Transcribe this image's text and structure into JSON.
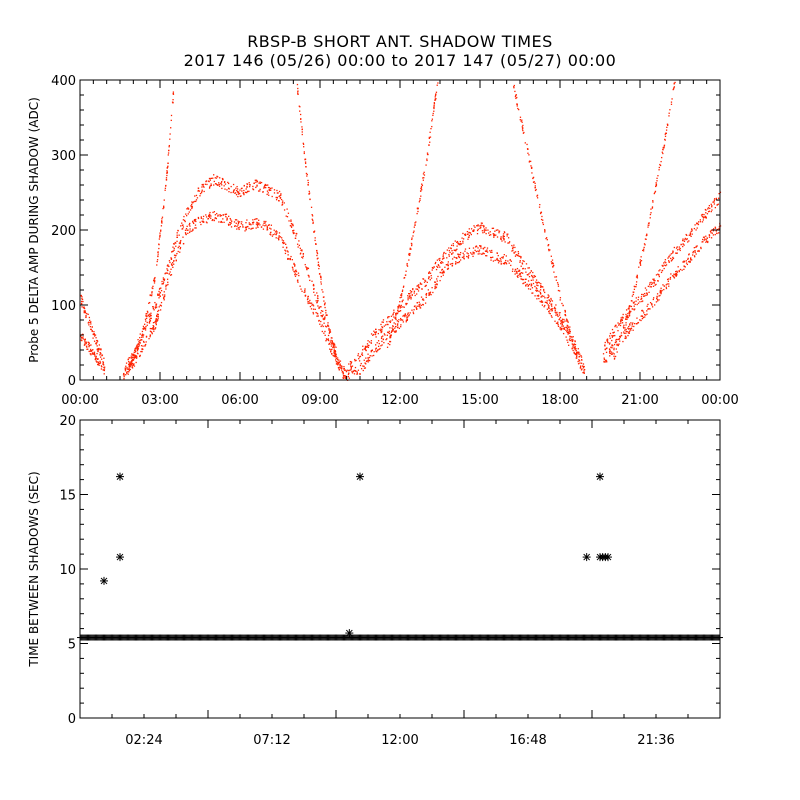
{
  "title_line1": "RBSP-B SHORT ANT. SHADOW TIMES",
  "title_line2": "2017 146 (05/26) 00:00 to 2017 147 (05/27) 00:00",
  "colors": {
    "series": "#ff2200",
    "marker": "#000000",
    "axis": "#000000"
  },
  "chart_data": [
    {
      "type": "scatter",
      "ylabel": "Probe 5 DELTA AMP DURING SHADOW (ADC)",
      "xlim_hours": [
        0,
        24
      ],
      "ylim": [
        0,
        400
      ],
      "x_ticks": [
        "00:00",
        "03:00",
        "06:00",
        "09:00",
        "12:00",
        "15:00",
        "18:00",
        "21:00",
        "00:00"
      ],
      "y_ticks": [
        "0",
        "100",
        "200",
        "300",
        "400"
      ],
      "grid": false,
      "series": [
        {
          "band": "upper",
          "x_hours": [
            0.0,
            0.3,
            0.6,
            0.9,
            1.6,
            2.0,
            2.4,
            2.8,
            3.1,
            3.5,
            4.0,
            4.5,
            5.0,
            5.5,
            6.0,
            6.5,
            7.0,
            7.5,
            8.0,
            8.5,
            9.0,
            9.5,
            9.9,
            10.5,
            11.0,
            11.5,
            12.0,
            12.5,
            13.0,
            13.5,
            14.0,
            14.5,
            15.0,
            15.5,
            16.0,
            16.5,
            17.0,
            17.5,
            18.0,
            18.5,
            18.9,
            19.6,
            20.0,
            20.5,
            21.0,
            21.5,
            22.0,
            22.5,
            23.0,
            23.5,
            24.0
          ],
          "y": [
            110,
            80,
            50,
            25,
            10,
            35,
            70,
            100,
            130,
            180,
            225,
            255,
            268,
            260,
            250,
            262,
            255,
            245,
            200,
            150,
            95,
            45,
            10,
            35,
            60,
            80,
            100,
            118,
            135,
            160,
            178,
            195,
            205,
            198,
            190,
            160,
            135,
            110,
            85,
            50,
            15,
            40,
            65,
            90,
            110,
            130,
            160,
            180,
            200,
            225,
            245
          ]
        },
        {
          "band": "lower",
          "x_hours": [
            0.0,
            0.3,
            0.6,
            0.9,
            1.6,
            2.0,
            2.4,
            2.8,
            3.1,
            3.5,
            4.0,
            4.5,
            5.0,
            5.5,
            6.0,
            6.5,
            7.0,
            7.5,
            8.0,
            8.5,
            9.0,
            9.5,
            9.9,
            10.5,
            11.0,
            11.5,
            12.0,
            12.5,
            13.0,
            13.5,
            14.0,
            14.5,
            15.0,
            15.5,
            16.0,
            16.5,
            17.0,
            17.5,
            18.0,
            18.5,
            18.9,
            19.6,
            20.0,
            20.5,
            21.0,
            21.5,
            22.0,
            22.5,
            23.0,
            23.5,
            24.0
          ],
          "y": [
            60,
            45,
            30,
            15,
            5,
            25,
            50,
            75,
            110,
            160,
            200,
            215,
            220,
            215,
            205,
            210,
            205,
            190,
            150,
            110,
            75,
            35,
            5,
            15,
            40,
            60,
            78,
            95,
            112,
            140,
            160,
            170,
            175,
            165,
            160,
            140,
            120,
            100,
            75,
            40,
            10,
            25,
            45,
            65,
            85,
            105,
            130,
            150,
            170,
            190,
            205
          ]
        },
        {
          "band": "rising-arc",
          "x_hours": [
            1.8,
            2.3,
            2.8,
            3.2,
            3.5
          ],
          "y": [
            15,
            60,
            140,
            260,
            390
          ]
        },
        {
          "band": "descending-arc",
          "x_hours": [
            8.1,
            8.5,
            8.9,
            9.3,
            9.7
          ],
          "y": [
            400,
            270,
            160,
            70,
            15
          ]
        },
        {
          "band": "rising-arc",
          "x_hours": [
            11.5,
            12.0,
            12.5,
            13.0,
            13.4
          ],
          "y": [
            40,
            110,
            200,
            300,
            400
          ]
        },
        {
          "band": "descending-arc",
          "x_hours": [
            16.2,
            16.8,
            17.4,
            18.0,
            18.6
          ],
          "y": [
            400,
            300,
            200,
            110,
            35
          ]
        },
        {
          "band": "rising-arc",
          "x_hours": [
            20.0,
            20.6,
            21.2,
            21.8,
            22.3
          ],
          "y": [
            30,
            95,
            190,
            300,
            400
          ]
        }
      ]
    },
    {
      "type": "scatter",
      "ylabel": "TIME BETWEEN SHADOWS (SEC)",
      "xlim_hours": [
        0,
        24
      ],
      "ylim": [
        0,
        20
      ],
      "x_ticks": [
        "02:24",
        "07:12",
        "12:00",
        "16:48",
        "21:36"
      ],
      "y_ticks": [
        "0",
        "5",
        "10",
        "15",
        "20"
      ],
      "grid": false,
      "baseline": {
        "value": 5.4,
        "x_start_hours": 0.0,
        "x_end_hours": 24.0
      },
      "x_hours": [
        0.9,
        1.5,
        1.5,
        10.1,
        10.5,
        19.0,
        19.5,
        19.5,
        19.6,
        19.7,
        19.8
      ],
      "y": [
        9.2,
        16.2,
        10.8,
        5.7,
        16.2,
        10.8,
        16.2,
        10.8,
        10.8,
        10.8,
        10.8
      ]
    }
  ]
}
